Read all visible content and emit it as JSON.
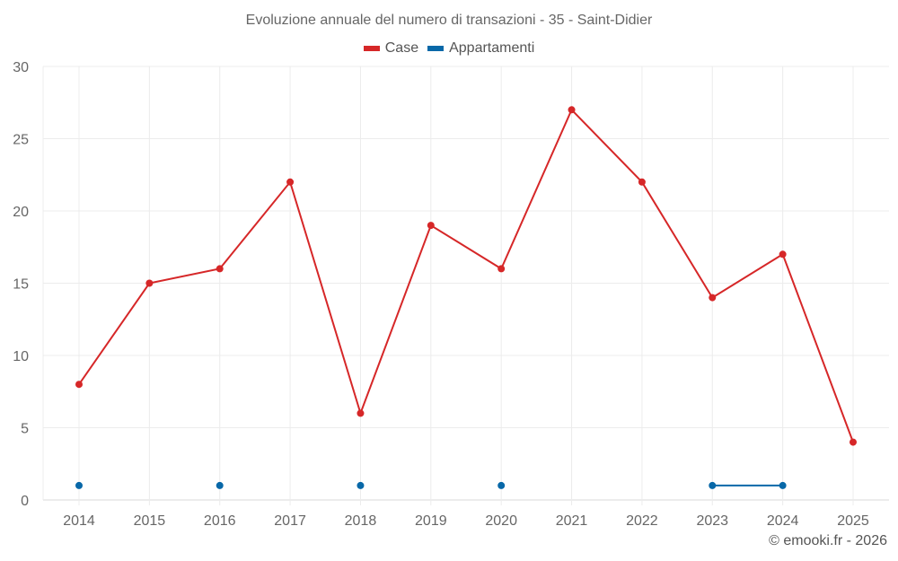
{
  "chart_data": {
    "type": "line",
    "title": "Evoluzione annuale del numero di transazioni - 35 - Saint-Didier",
    "xlabel": "",
    "ylabel": "",
    "ylim": [
      0,
      30
    ],
    "yticks": [
      0,
      5,
      10,
      15,
      20,
      25,
      30
    ],
    "grid": true,
    "legend_position": "top",
    "categories": [
      "2014",
      "2015",
      "2016",
      "2017",
      "2018",
      "2019",
      "2020",
      "2021",
      "2022",
      "2023",
      "2024",
      "2025"
    ],
    "series": [
      {
        "name": "Case",
        "color": "#d62728",
        "values": [
          8,
          15,
          16,
          22,
          6,
          19,
          16,
          27,
          22,
          14,
          17,
          4
        ]
      },
      {
        "name": "Appartamenti",
        "color": "#0868a8",
        "values": [
          1,
          null,
          1,
          null,
          1,
          null,
          1,
          null,
          null,
          1,
          1,
          null
        ]
      }
    ]
  },
  "footer": "© emooki.fr - 2026"
}
